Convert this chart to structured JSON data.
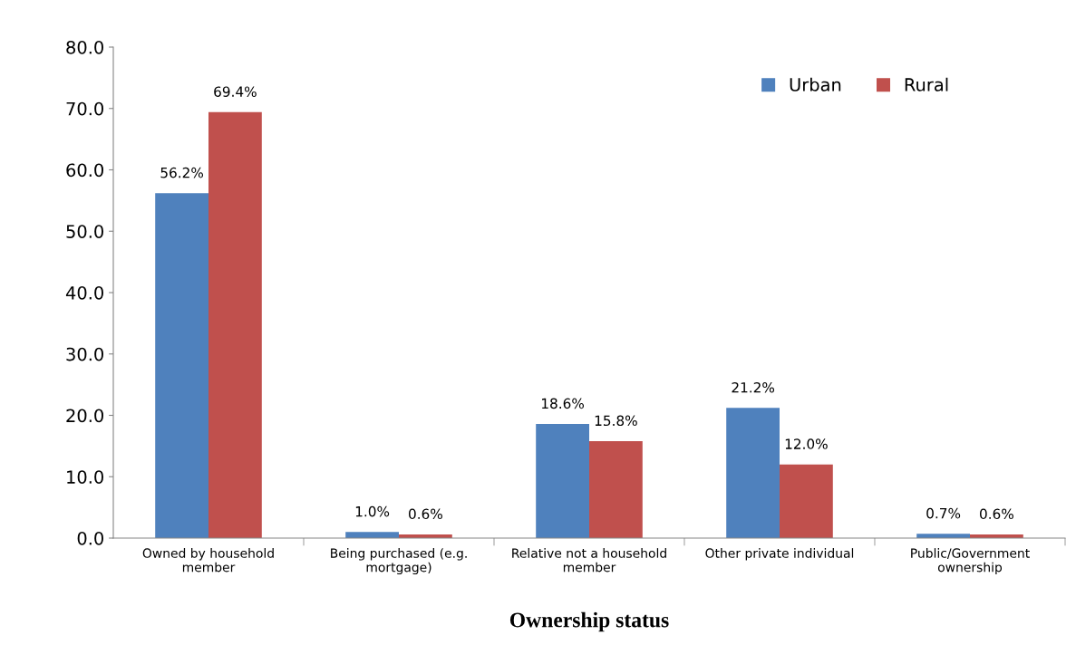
{
  "chart_data": {
    "type": "bar",
    "xlabel": "Ownership status",
    "categories": [
      "Owned by household\nmember",
      "Being purchased (e.g.\nmortgage)",
      "Relative not a household\nmember",
      "Other private individual",
      "Public/Government\nownership"
    ],
    "series": [
      {
        "name": "Urban",
        "color": "#4f81bd",
        "values": [
          56.2,
          1.0,
          18.6,
          21.2,
          0.7
        ],
        "value_labels": [
          "56.2%",
          "1.0%",
          "18.6%",
          "21.2%",
          "0.7%"
        ]
      },
      {
        "name": "Rural",
        "color": "#c0504d",
        "values": [
          69.4,
          0.6,
          15.8,
          12.0,
          0.6
        ],
        "value_labels": [
          "69.4%",
          "0.6%",
          "15.8%",
          "12.0%",
          "0.6%"
        ]
      }
    ],
    "ylim": [
      0,
      80
    ],
    "yticks": [
      {
        "value": 0,
        "label": "0.0"
      },
      {
        "value": 10,
        "label": "10.0"
      },
      {
        "value": 20,
        "label": "20.0"
      },
      {
        "value": 30,
        "label": "30.0"
      },
      {
        "value": 40,
        "label": "40.0"
      },
      {
        "value": 50,
        "label": "50.0"
      },
      {
        "value": 60,
        "label": "60.0"
      },
      {
        "value": 70,
        "label": "70.0"
      },
      {
        "value": 80,
        "label": "80.0"
      }
    ],
    "grid": false,
    "legend": "top right"
  }
}
